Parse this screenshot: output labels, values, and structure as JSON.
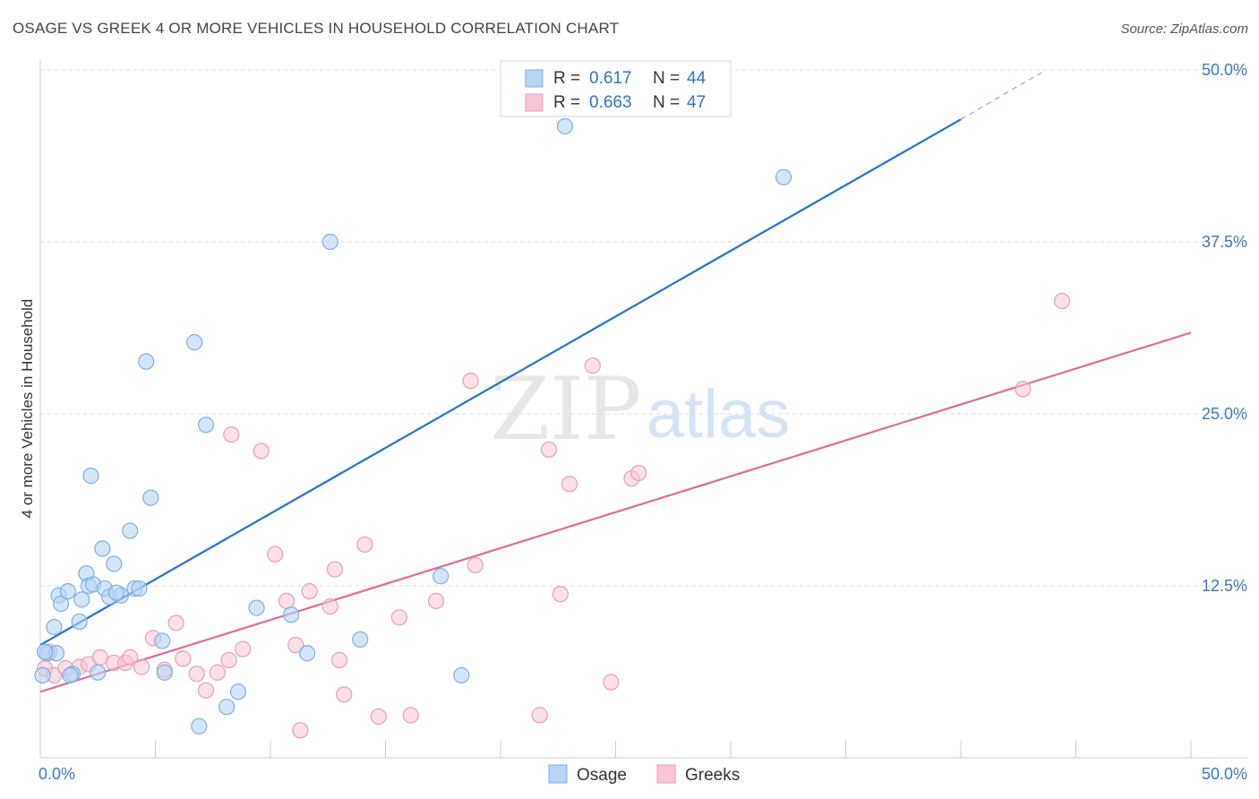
{
  "header": {
    "title": "OSAGE VS GREEK 4 OR MORE VEHICLES IN HOUSEHOLD CORRELATION CHART",
    "source": "Source: ZipAtlas.com"
  },
  "watermark": {
    "zip": "ZIP",
    "atlas": "atlas"
  },
  "legend_top": {
    "rows": [
      {
        "r_label": "R =",
        "r_value": "0.617",
        "n_label": "N =",
        "n_value": "44"
      },
      {
        "r_label": "R =",
        "r_value": "0.663",
        "n_label": "N =",
        "n_value": "47"
      }
    ]
  },
  "legend_bottom": {
    "items": [
      "Osage",
      "Greeks"
    ]
  },
  "colors": {
    "osage_fill": "#b8d3f3",
    "osage_stroke": "#7aaee6",
    "osage_line": "#2472d0",
    "greeks_fill": "#f8c6d6",
    "greeks_stroke": "#eb9ab6",
    "greeks_line": "#e36a95",
    "tick_text": "#3b78c4",
    "grid": "#d8d8d8"
  },
  "chart_data": {
    "type": "scatter",
    "title": "OSAGE VS GREEK 4 OR MORE VEHICLES IN HOUSEHOLD CORRELATION CHART",
    "xlabel": "",
    "ylabel": "4 or more Vehicles in Household",
    "xlim": [
      0,
      50
    ],
    "ylim": [
      0,
      50
    ],
    "x_tick_labels": [
      "0.0%",
      "50.0%"
    ],
    "y_ticks": [
      12.5,
      25.0,
      37.5,
      50.0
    ],
    "y_tick_labels": [
      "12.5%",
      "25.0%",
      "37.5%",
      "50.0%"
    ],
    "grid": true,
    "legend_position": "top-center",
    "series": [
      {
        "name": "Osage",
        "R": 0.617,
        "N": 44,
        "trend": {
          "x": [
            0,
            40
          ],
          "y": [
            8.2,
            46.4
          ],
          "dashed_to": [
            43.5,
            49.8
          ]
        },
        "points": [
          [
            0.1,
            6.0
          ],
          [
            0.3,
            7.6
          ],
          [
            0.6,
            9.5
          ],
          [
            0.7,
            7.6
          ],
          [
            0.8,
            11.8
          ],
          [
            0.9,
            11.2
          ],
          [
            1.2,
            12.1
          ],
          [
            1.4,
            6.1
          ],
          [
            1.7,
            9.9
          ],
          [
            1.8,
            11.5
          ],
          [
            2.0,
            13.4
          ],
          [
            2.1,
            12.5
          ],
          [
            2.3,
            12.6
          ],
          [
            2.5,
            6.2
          ],
          [
            2.7,
            15.2
          ],
          [
            2.8,
            12.3
          ],
          [
            3.0,
            11.7
          ],
          [
            3.2,
            14.1
          ],
          [
            3.5,
            11.8
          ],
          [
            3.9,
            16.5
          ],
          [
            4.1,
            12.3
          ],
          [
            4.3,
            12.3
          ],
          [
            4.6,
            28.8
          ],
          [
            4.8,
            18.9
          ],
          [
            5.3,
            8.5
          ],
          [
            5.4,
            6.2
          ],
          [
            6.7,
            30.2
          ],
          [
            6.9,
            2.3
          ],
          [
            7.2,
            24.2
          ],
          [
            8.1,
            3.7
          ],
          [
            8.6,
            4.8
          ],
          [
            9.4,
            10.9
          ],
          [
            10.9,
            10.4
          ],
          [
            11.6,
            7.6
          ],
          [
            12.6,
            37.5
          ],
          [
            13.9,
            8.6
          ],
          [
            17.4,
            13.2
          ],
          [
            18.3,
            6.0
          ],
          [
            22.8,
            45.9
          ],
          [
            32.3,
            42.2
          ],
          [
            0.2,
            7.7
          ],
          [
            1.3,
            6.0
          ],
          [
            3.3,
            12.0
          ],
          [
            2.2,
            20.5
          ]
        ]
      },
      {
        "name": "Greeks",
        "R": 0.663,
        "N": 47,
        "trend": {
          "x": [
            0,
            50
          ],
          "y": [
            4.8,
            30.9
          ]
        },
        "points": [
          [
            0.2,
            6.5
          ],
          [
            0.4,
            7.7
          ],
          [
            0.6,
            6.0
          ],
          [
            1.1,
            6.5
          ],
          [
            1.7,
            6.6
          ],
          [
            2.1,
            6.8
          ],
          [
            2.6,
            7.3
          ],
          [
            3.2,
            6.9
          ],
          [
            3.7,
            6.9
          ],
          [
            3.9,
            7.3
          ],
          [
            4.4,
            6.6
          ],
          [
            4.9,
            8.7
          ],
          [
            5.4,
            6.4
          ],
          [
            5.9,
            9.8
          ],
          [
            6.2,
            7.2
          ],
          [
            6.8,
            6.1
          ],
          [
            7.2,
            4.9
          ],
          [
            7.7,
            6.2
          ],
          [
            8.2,
            7.1
          ],
          [
            8.3,
            23.5
          ],
          [
            8.8,
            7.9
          ],
          [
            9.6,
            22.3
          ],
          [
            10.2,
            14.8
          ],
          [
            10.7,
            11.4
          ],
          [
            11.1,
            8.2
          ],
          [
            11.3,
            2.0
          ],
          [
            11.7,
            12.1
          ],
          [
            12.6,
            11.0
          ],
          [
            12.8,
            13.7
          ],
          [
            13.0,
            7.1
          ],
          [
            13.2,
            4.6
          ],
          [
            14.1,
            15.5
          ],
          [
            14.7,
            3.0
          ],
          [
            15.6,
            10.2
          ],
          [
            16.1,
            3.1
          ],
          [
            17.2,
            11.4
          ],
          [
            18.7,
            27.4
          ],
          [
            18.9,
            14.0
          ],
          [
            21.7,
            3.1
          ],
          [
            22.1,
            22.4
          ],
          [
            22.6,
            11.9
          ],
          [
            23.0,
            19.9
          ],
          [
            24.0,
            28.5
          ],
          [
            24.8,
            5.5
          ],
          [
            25.7,
            20.3
          ],
          [
            26.0,
            20.7
          ],
          [
            44.4,
            33.2
          ]
        ],
        "extra_points": [
          [
            42.7,
            26.8
          ]
        ]
      }
    ]
  }
}
